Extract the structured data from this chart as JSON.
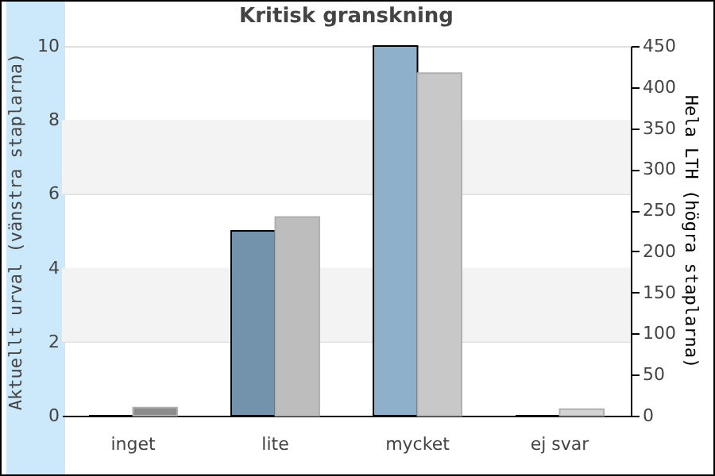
{
  "chart_data": {
    "type": "bar",
    "title": "Kritisk granskning",
    "categories": [
      "inget",
      "lite",
      "mycket",
      "ej svar"
    ],
    "ylabel": "Aktuellt urval (vänstra staplarna)",
    "y2label": "Hela LTH (högra staplarna)",
    "series": [
      {
        "axis": "y",
        "colors": [
          "#7393ad",
          "#7393ad",
          "#8fb0cb",
          "#8fb0cb"
        ],
        "values": [
          0,
          5,
          10,
          0
        ]
      },
      {
        "axis": "y2",
        "colors": [
          "#8c8c8c",
          "#bdbdbd",
          "#c8c8c8",
          "#d4d4d4"
        ],
        "values": [
          10,
          242,
          417,
          8
        ]
      }
    ],
    "ylim": [
      0,
      10
    ],
    "yticks": [
      0,
      2,
      4,
      6,
      8,
      10
    ],
    "y2lim": [
      0,
      450
    ],
    "y2ticks": [
      0,
      50,
      100,
      150,
      200,
      250,
      300,
      350,
      400,
      450
    ],
    "bands": [
      {
        "axis": "y",
        "from": 2,
        "to": 4,
        "color": "#f3f3f3"
      },
      {
        "axis": "y",
        "from": 6,
        "to": 8,
        "color": "#f3f3f3"
      }
    ],
    "grid": "y"
  }
}
